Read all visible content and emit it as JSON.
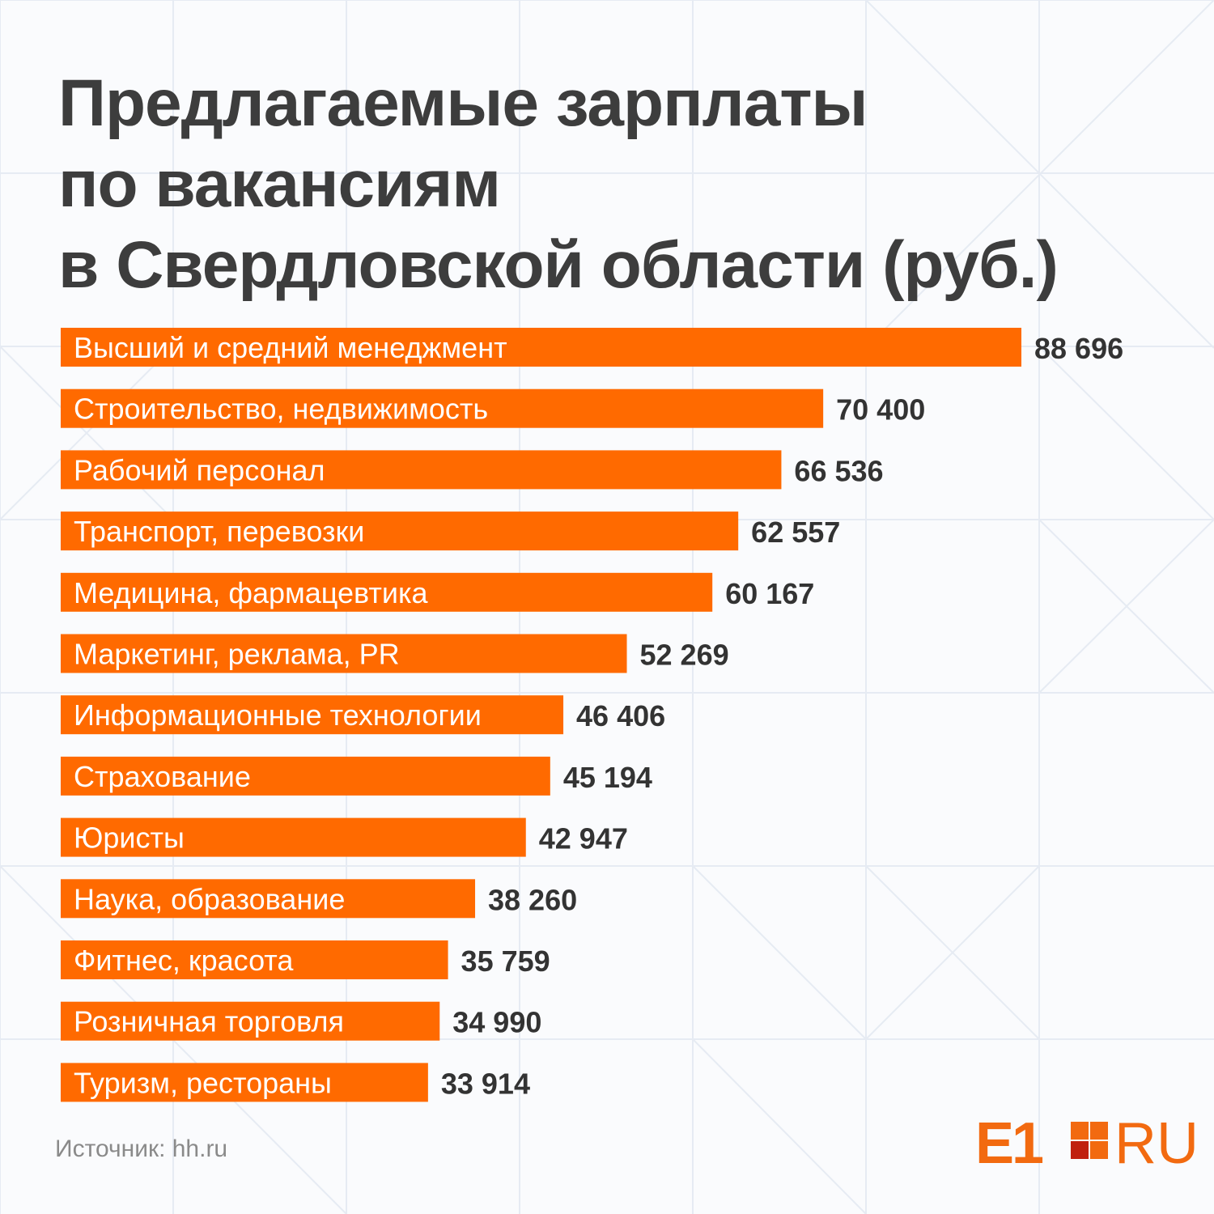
{
  "title": {
    "line1": "Предлагаемые зарплаты",
    "line2": "по вакансиям",
    "line3": "в Свердловской области (руб.)"
  },
  "source": "Источник: hh.ru",
  "logo": {
    "left": "E1",
    "right": "RU",
    "brand_color": "#f26a10",
    "dark_square_color": "#c0200f"
  },
  "colors": {
    "bar": "#ff6a00",
    "title": "#3d3d3d",
    "value": "#333333"
  },
  "chart_data": {
    "type": "bar",
    "orientation": "horizontal",
    "title": "Предлагаемые зарплаты по вакансиям в Свердловской области (руб.)",
    "xlabel": "",
    "ylabel": "",
    "xlim": [
      0,
      88696
    ],
    "grid": false,
    "categories": [
      "Высший и средний менеджмент",
      "Строительство, недвижимость",
      "Рабочий персонал",
      "Транспорт, перевозки",
      "Медицина, фармацевтика",
      "Маркетинг, реклама, PR",
      "Информационные технологии",
      "Страхование",
      "Юристы",
      "Наука, образование",
      "Фитнес, красота",
      "Розничная торговля",
      "Туризм, рестораны"
    ],
    "values": [
      88696,
      70400,
      66536,
      62557,
      60167,
      52269,
      46406,
      45194,
      42947,
      38260,
      35759,
      34990,
      33914
    ],
    "value_labels": [
      "88 696",
      "70 400",
      "66 536",
      "62 557",
      "60 167",
      "52 269",
      "46 406",
      "45 194",
      "42 947",
      "38 260",
      "35 759",
      "34 990",
      "33 914"
    ]
  }
}
